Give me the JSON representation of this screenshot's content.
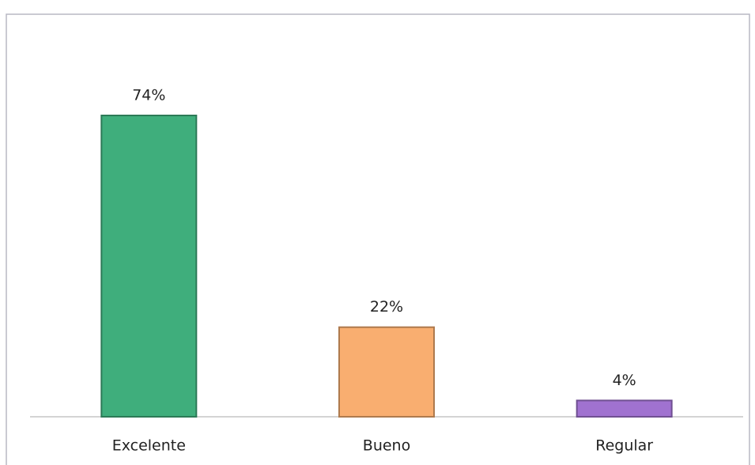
{
  "chart_data": {
    "type": "bar",
    "categories": [
      "Excelente",
      "Bueno",
      "Regular"
    ],
    "values": [
      74,
      22,
      4
    ],
    "value_labels": [
      "74%",
      "22%",
      "4%"
    ],
    "colors": [
      "#3fae7c",
      "#f9ae70",
      "#a072d0"
    ]
  }
}
